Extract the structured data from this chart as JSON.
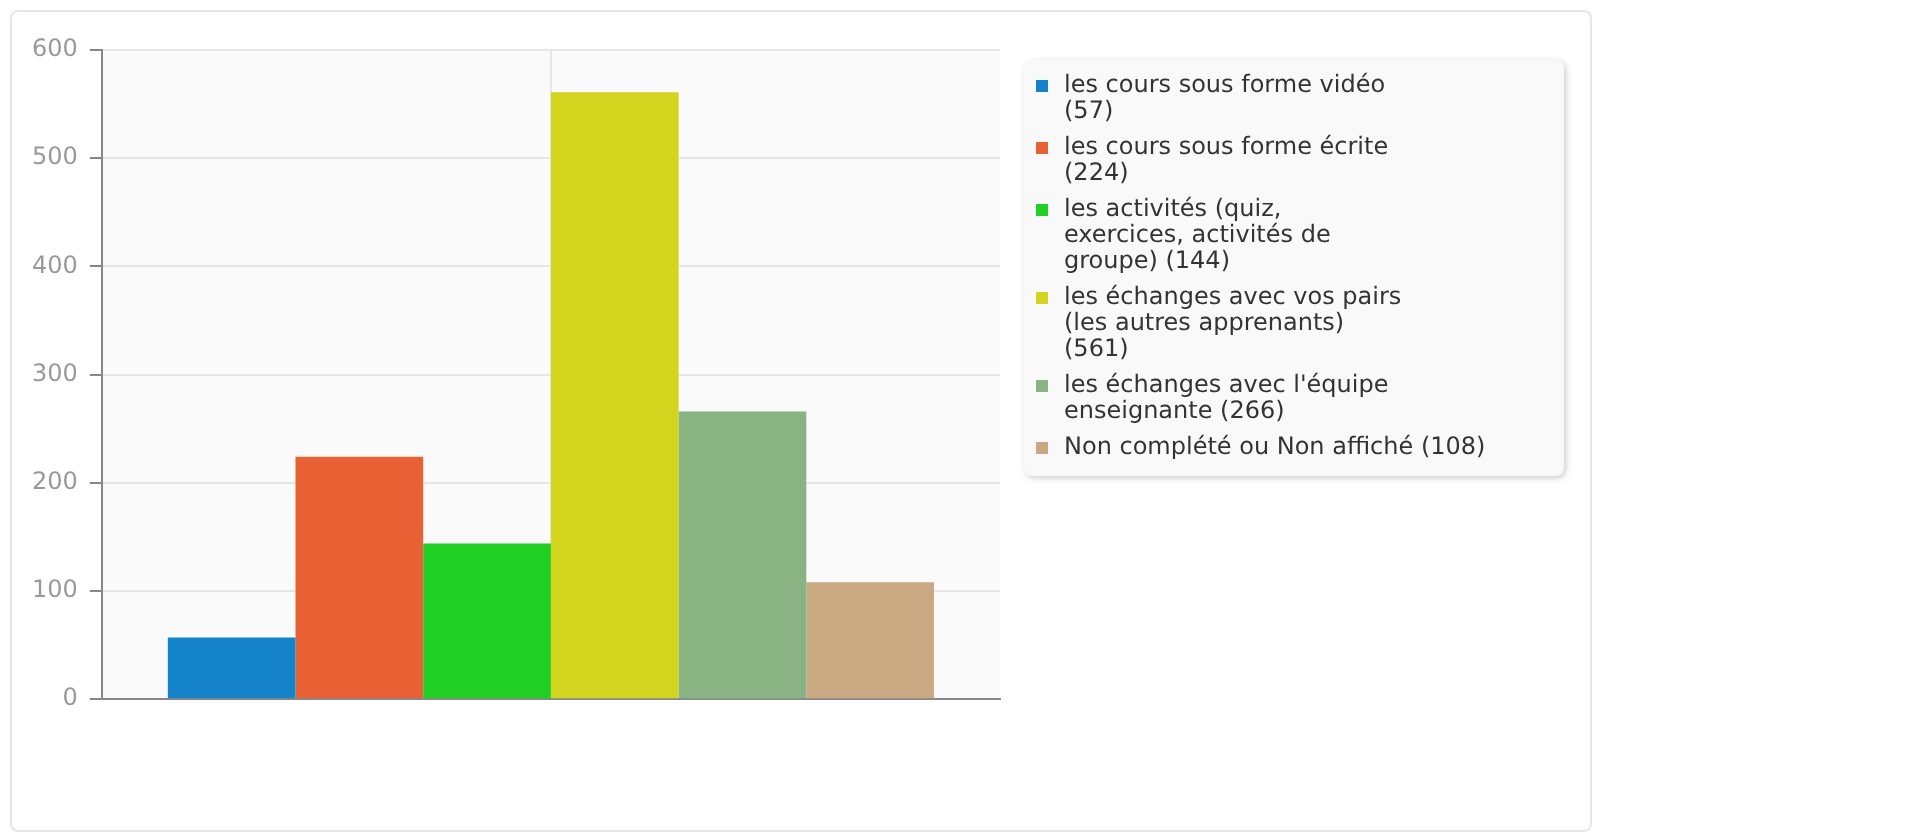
{
  "chart_data": {
    "type": "bar",
    "categories": [
      null
    ],
    "series": [
      {
        "name": "les cours sous forme vidéo (57)",
        "color": "#1483c9",
        "values": [
          57
        ]
      },
      {
        "name": "les cours sous forme écrite (224)",
        "color": "#e86134",
        "values": [
          224
        ]
      },
      {
        "name": "les activités (quiz, exercices, activités de groupe) (144)",
        "color": "#21d024",
        "values": [
          144
        ]
      },
      {
        "name": "les échanges avec vos pairs (les autres apprenants) (561)",
        "color": "#d2d41e",
        "values": [
          561
        ]
      },
      {
        "name": "les échanges avec l'équipe enseignante (266)",
        "color": "#8ab384",
        "values": [
          266
        ]
      },
      {
        "name": "Non complété ou Non affiché (108)",
        "color": "#c8a982",
        "values": [
          108
        ]
      }
    ],
    "ylim": [
      0,
      600
    ],
    "yticks": [
      0,
      100,
      200,
      300,
      400,
      500,
      600
    ],
    "grid": true,
    "legend": "right"
  }
}
